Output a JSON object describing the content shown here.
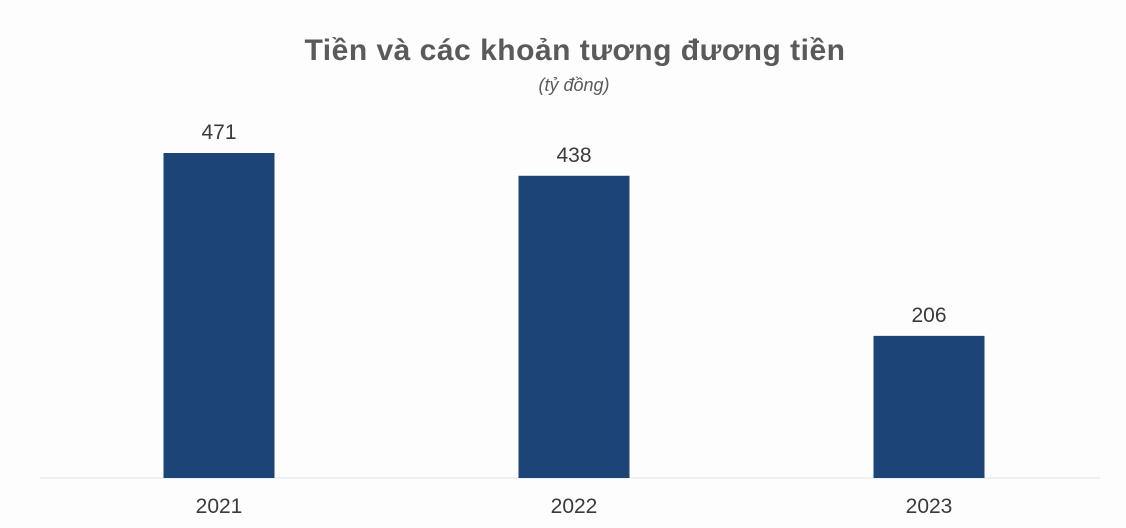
{
  "chart_data": {
    "type": "bar",
    "title": "Tiền và các khoản tương đương tiền",
    "subtitle": "(tỷ đồng)",
    "categories": [
      "2021",
      "2022",
      "2023"
    ],
    "values": [
      471,
      438,
      206
    ],
    "data_labels": [
      "471",
      "438",
      "206"
    ],
    "xlabel": "",
    "ylabel": "",
    "ylim": [
      0,
      471
    ],
    "grid": false,
    "legend": "none",
    "bar_color": "#1c4476"
  }
}
